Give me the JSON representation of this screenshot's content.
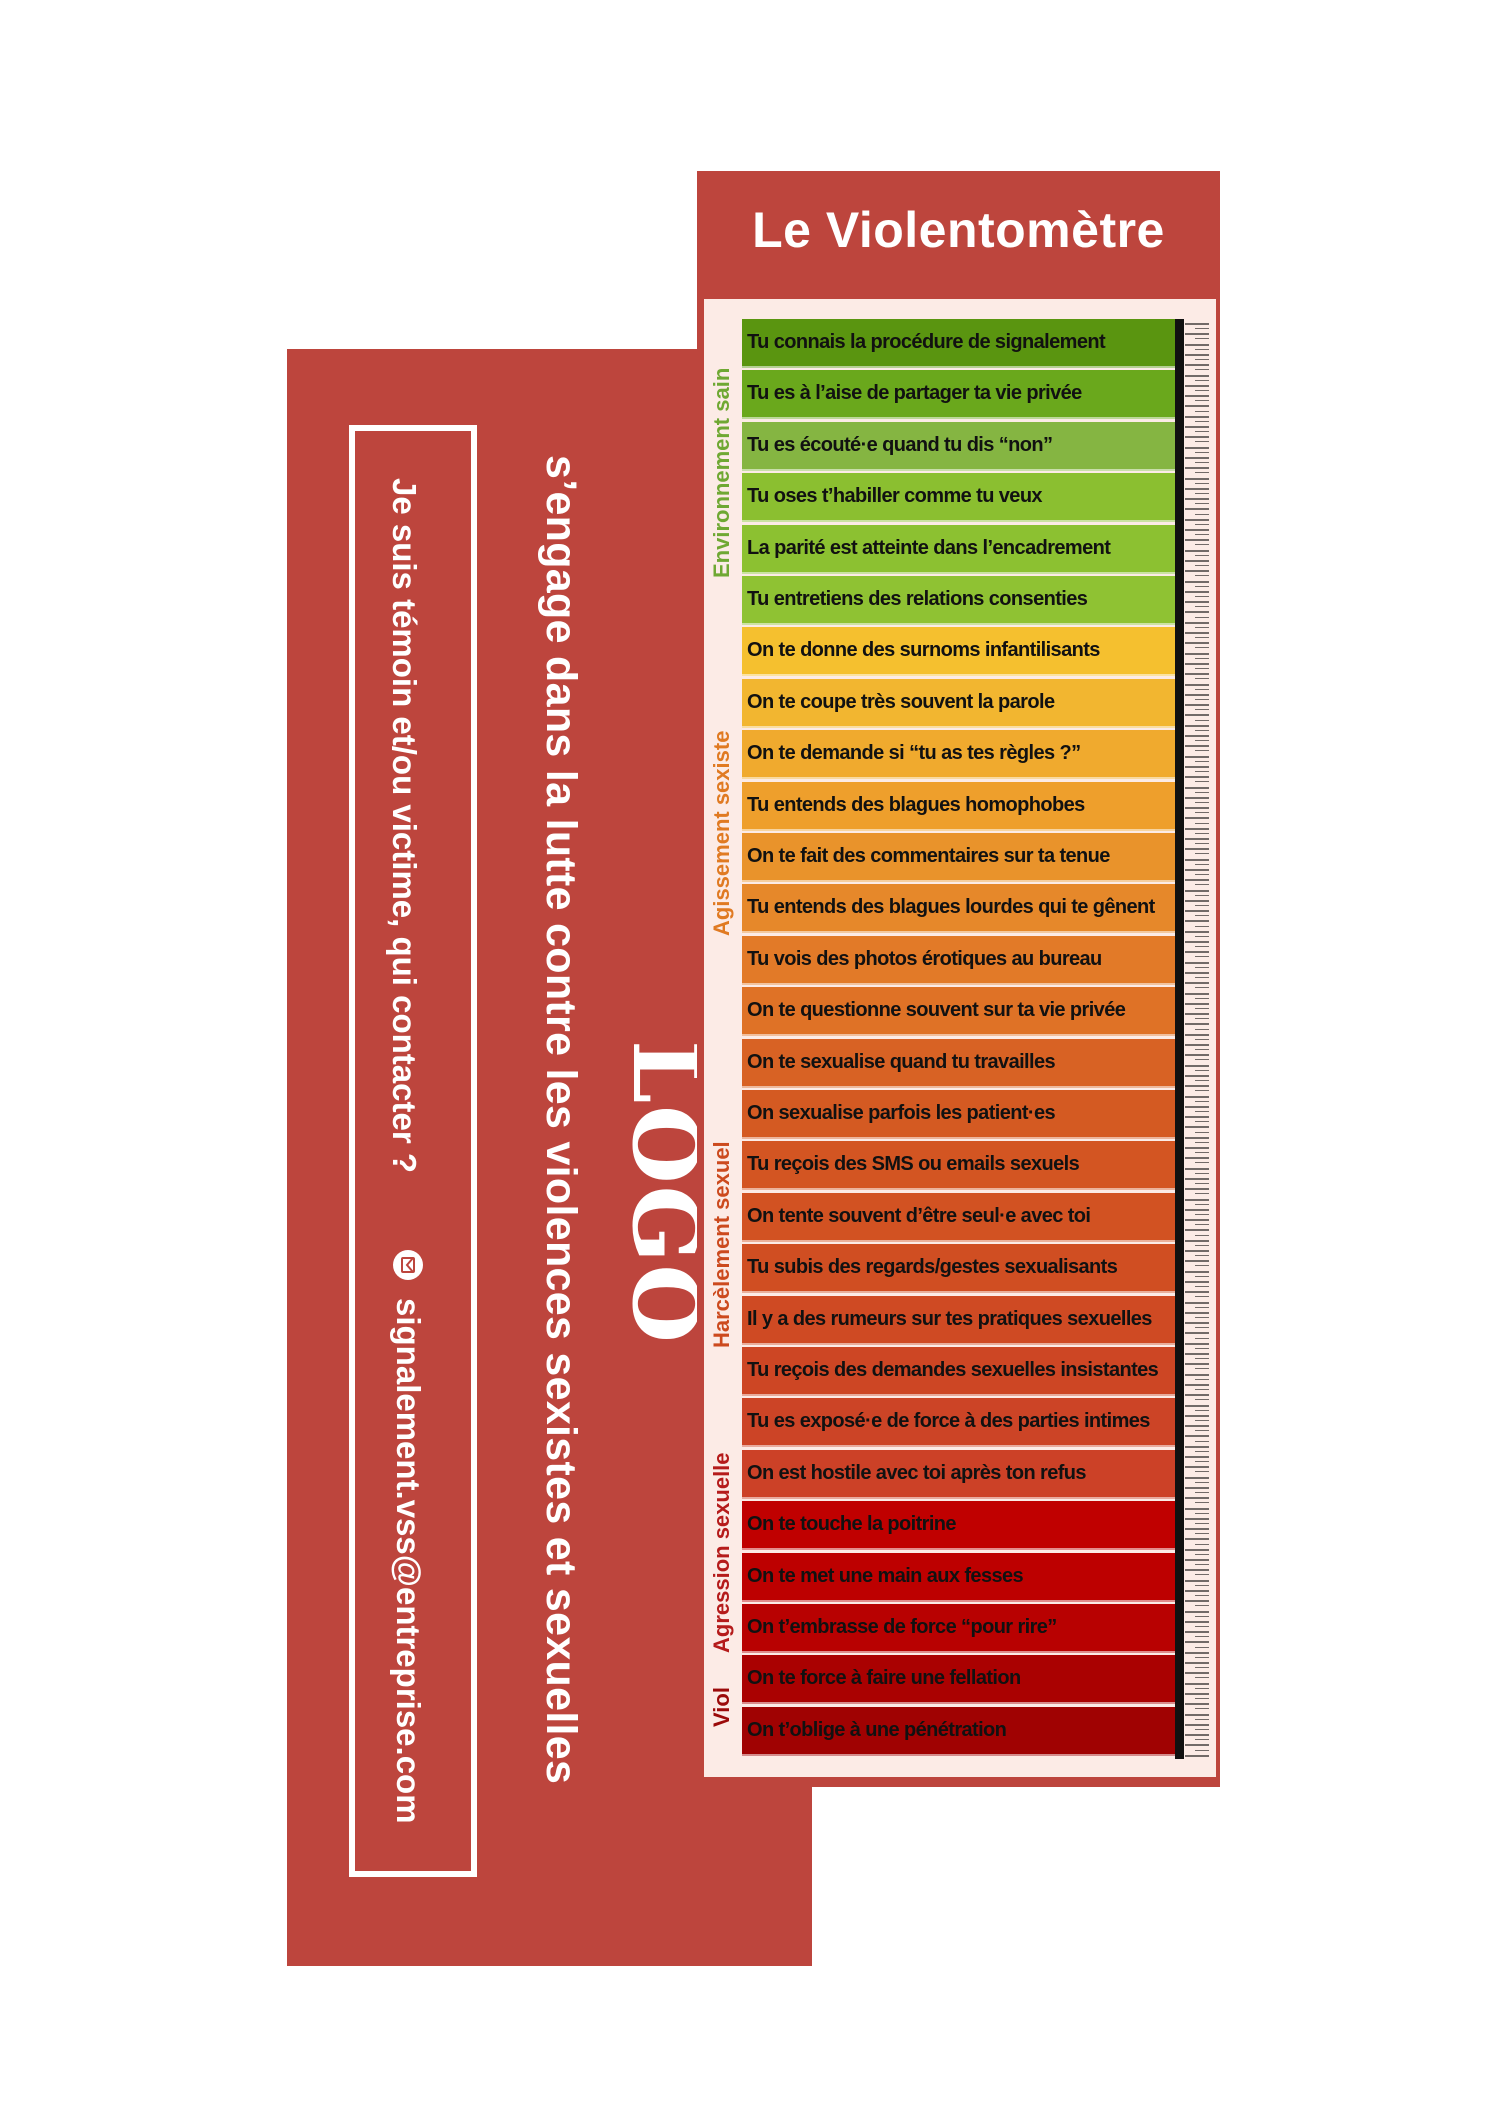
{
  "bookmark_back": {
    "tagline": "s’engage dans la lutte contre les violences sexistes et sexuelles",
    "logo_text": "LOGO",
    "contact_question": "Je suis témoin et/ou victime, qui contacter ?",
    "contact_email": "signalement.vss@entreprise.com",
    "icon": "mail-icon"
  },
  "violentometre": {
    "title": "Le Violentomètre",
    "levels": [
      {
        "label": "Environnement sain",
        "color": "#6fa833"
      },
      {
        "label": "Agissement sexiste",
        "color": "#e07a22"
      },
      {
        "label": "Harcèlement sexuel",
        "color": "#cc4a1e"
      },
      {
        "label": "Agression sexuelle",
        "color": "#b51b1b"
      },
      {
        "label": "Viol",
        "color": "#9b0a0a"
      }
    ],
    "items": [
      {
        "text": "Tu connais la procédure de signalement",
        "color": "#5a9510"
      },
      {
        "text": "Tu es à l’aise de partager ta vie privée",
        "color": "#6aa81c"
      },
      {
        "text": "Tu es écouté·e quand tu dis “non”",
        "color": "#85b542"
      },
      {
        "text": "Tu oses t’habiller comme tu veux",
        "color": "#8bbf30"
      },
      {
        "text": "La parité est atteinte dans l’encadrement",
        "color": "#8cc131"
      },
      {
        "text": "Tu entretiens des relations consenties",
        "color": "#8fc233"
      },
      {
        "text": "On te donne des surnoms infantilisants",
        "color": "#f5c02f"
      },
      {
        "text": "On te coupe très souvent la parole",
        "color": "#f2b630"
      },
      {
        "text": "On te demande si “tu as tes règles ?”",
        "color": "#f0aa2e"
      },
      {
        "text": "Tu entends des blagues homophobes",
        "color": "#ee9f2c"
      },
      {
        "text": "On te fait des commentaires sur ta tenue",
        "color": "#e9932b"
      },
      {
        "text": "Tu entends des blagues lourdes qui te gênent",
        "color": "#e6882a"
      },
      {
        "text": "Tu vois des photos érotiques au bureau",
        "color": "#e27a28"
      },
      {
        "text": "On te questionne souvent sur ta vie privée",
        "color": "#df7226"
      },
      {
        "text": "On te sexualise quand tu travailles",
        "color": "#d86224"
      },
      {
        "text": "On sexualise parfois les patient·es",
        "color": "#d45a22"
      },
      {
        "text": "Tu reçois des SMS ou emails sexuels",
        "color": "#d35522"
      },
      {
        "text": "On tente souvent d’être seul·e avec toi",
        "color": "#d25222"
      },
      {
        "text": "Tu subis des regards/gestes sexualisants",
        "color": "#d04e22"
      },
      {
        "text": "Il y a des rumeurs sur tes pratiques sexuelles",
        "color": "#cf4a23"
      },
      {
        "text": "Tu reçois des demandes sexuelles insistantes",
        "color": "#cd4624"
      },
      {
        "text": "Tu es exposé·e de force à des parties intimes",
        "color": "#cc4426"
      },
      {
        "text": "On est hostile avec toi après ton refus",
        "color": "#cc4127"
      },
      {
        "text": "On te touche la poitrine",
        "color": "#c00000"
      },
      {
        "text": "On te met une main aux fesses",
        "color": "#bd0000"
      },
      {
        "text": "On t’embrasse de force “pour rire”",
        "color": "#b80101"
      },
      {
        "text": "On te force à faire une fellation",
        "color": "#aa0101"
      },
      {
        "text": "On t’oblige à une pénétration",
        "color": "#a00202"
      }
    ]
  }
}
